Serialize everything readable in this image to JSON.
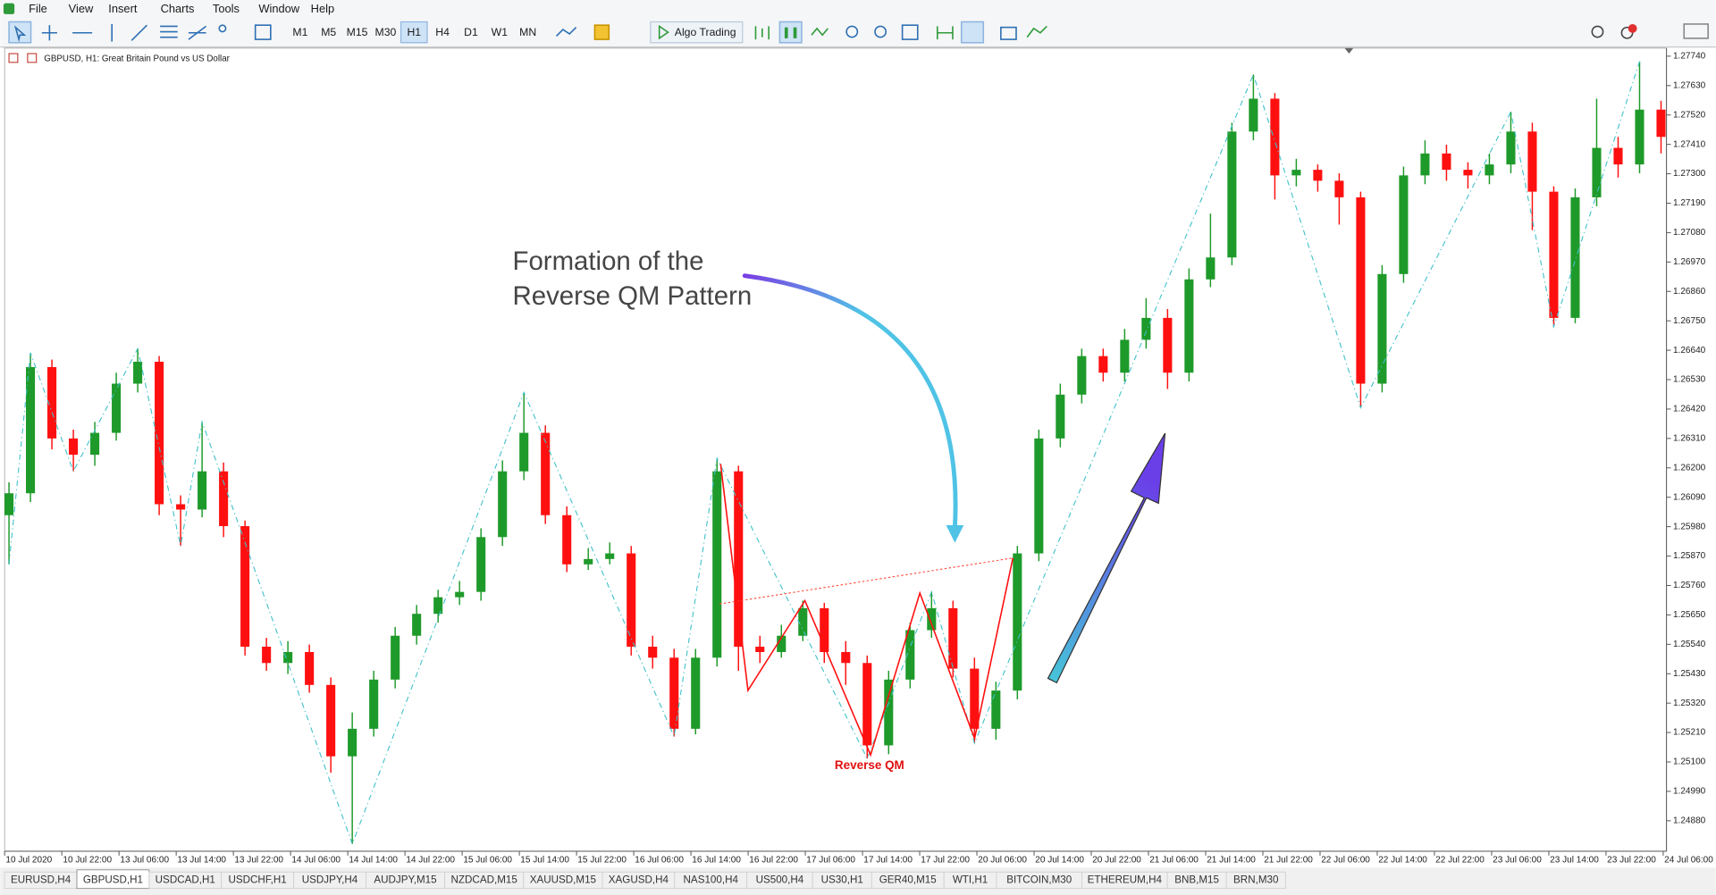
{
  "menu": [
    "File",
    "View",
    "Insert",
    "Charts",
    "Tools",
    "Window",
    "Help"
  ],
  "timeframes": [
    "M1",
    "M5",
    "M15",
    "M30",
    "H1",
    "H4",
    "D1",
    "W1",
    "MN"
  ],
  "active_timeframe": "H1",
  "algo_button": "Algo Trading",
  "chart_header": "GBPUSD, H1:  Great Britain Pound vs US Dollar",
  "chart_data": {
    "type": "candlestick",
    "annotation": [
      "Formation of the",
      "Reverse QM Pattern"
    ],
    "pattern_label": "Reverse QM",
    "up_color": "#1e9a2a",
    "down_color": "#ff1010",
    "ylim": [
      1.2477,
      1.2777
    ],
    "yticks": [
      {
        "value": 1.2774,
        "label": "1.27740"
      },
      {
        "value": 1.2763,
        "label": "1.27630"
      },
      {
        "value": 1.2752,
        "label": "1.27520"
      },
      {
        "value": 1.2741,
        "label": "1.27410"
      },
      {
        "value": 1.273,
        "label": "1.27300"
      },
      {
        "value": 1.2719,
        "label": "1.27190"
      },
      {
        "value": 1.2708,
        "label": "1.27080"
      },
      {
        "value": 1.2697,
        "label": "1.26970"
      },
      {
        "value": 1.2686,
        "label": "1.26860"
      },
      {
        "value": 1.2675,
        "label": "1.26750"
      },
      {
        "value": 1.2664,
        "label": "1.26640"
      },
      {
        "value": 1.2653,
        "label": "1.26530"
      },
      {
        "value": 1.2642,
        "label": "1.26420"
      },
      {
        "value": 1.2631,
        "label": "1.26310"
      },
      {
        "value": 1.262,
        "label": "1.26200"
      },
      {
        "value": 1.2609,
        "label": "1.26090"
      },
      {
        "value": 1.2598,
        "label": "1.25980"
      },
      {
        "value": 1.2587,
        "label": "1.25870"
      },
      {
        "value": 1.2576,
        "label": "1.25760"
      },
      {
        "value": 1.2565,
        "label": "1.25650"
      },
      {
        "value": 1.2554,
        "label": "1.25540"
      },
      {
        "value": 1.2543,
        "label": "1.25430"
      },
      {
        "value": 1.2532,
        "label": "1.25320"
      },
      {
        "value": 1.2521,
        "label": "1.25210"
      },
      {
        "value": 1.251,
        "label": "1.25100"
      },
      {
        "value": 1.2499,
        "label": "1.24990"
      },
      {
        "value": 1.2488,
        "label": "1.24880"
      }
    ],
    "x_tick_labels": [
      "10 Jul 2020",
      "10 Jul 22:00",
      "13 Jul 06:00",
      "13 Jul 14:00",
      "13 Jul 22:00",
      "14 Jul 06:00",
      "14 Jul 14:00",
      "14 Jul 22:00",
      "15 Jul 06:00",
      "15 Jul 14:00",
      "15 Jul 22:00",
      "16 Jul 06:00",
      "16 Jul 14:00",
      "16 Jul 22:00",
      "17 Jul 06:00",
      "17 Jul 14:00",
      "17 Jul 22:00",
      "20 Jul 06:00",
      "20 Jul 14:00",
      "20 Jul 22:00",
      "21 Jul 06:00",
      "21 Jul 14:00",
      "21 Jul 22:00",
      "22 Jul 06:00",
      "22 Jul 14:00",
      "22 Jul 22:00",
      "23 Jul 06:00",
      "23 Jul 14:00",
      "23 Jul 22:00",
      "24 Jul 06:00"
    ],
    "open": [
      1.26023,
      1.26105,
      1.26577,
      1.2631,
      1.26249,
      1.26331,
      1.26515,
      1.26597,
      1.26064,
      1.26044,
      1.26187,
      1.25982,
      1.25531,
      1.2547,
      1.25511,
      1.25388,
      1.25121,
      1.25224,
      1.25408,
      1.25572,
      1.25654,
      1.25716,
      1.25736,
      1.25941,
      1.26187,
      1.26331,
      1.26023,
      1.25839,
      1.25859,
      1.2588,
      1.25531,
      1.2549,
      1.25224,
      1.2549,
      1.26187,
      1.25531,
      1.25511,
      1.25572,
      1.25675,
      1.25511,
      1.2547,
      1.25162,
      1.25408,
      1.25593,
      1.25675,
      1.25449,
      1.25224,
      1.25367,
      1.2588,
      1.2631,
      1.26474,
      1.26618,
      1.26556,
      1.26679,
      1.26761,
      1.26556,
      1.26905,
      1.26987,
      1.27458,
      1.27581,
      1.27294,
      1.27315,
      1.27274,
      1.27212,
      1.26515,
      1.26925,
      1.27294,
      1.27376,
      1.27315,
      1.27294,
      1.27335,
      1.27458,
      1.27233,
      1.26761,
      1.27212,
      1.27397,
      1.27335,
      1.2754
    ],
    "high": [
      1.26146,
      1.2663,
      1.26605,
      1.26343,
      1.26372,
      1.26556,
      1.26646,
      1.26618,
      1.26097,
      1.26372,
      1.2622,
      1.26003,
      1.25564,
      1.25552,
      1.25539,
      1.25416,
      1.25285,
      1.25441,
      1.25605,
      1.25687,
      1.25744,
      1.25777,
      1.25974,
      1.26228,
      1.26482,
      1.26359,
      1.26056,
      1.259,
      1.25921,
      1.25908,
      1.25572,
      1.25523,
      1.25523,
      1.26236,
      1.26208,
      1.25572,
      1.25613,
      1.25703,
      1.25695,
      1.25552,
      1.25498,
      1.25441,
      1.25621,
      1.25736,
      1.25703,
      1.2549,
      1.254,
      1.25908,
      1.26343,
      1.26515,
      1.26646,
      1.26646,
      1.2672,
      1.26835,
      1.26794,
      1.26946,
      1.27151,
      1.27491,
      1.27671,
      1.27602,
      1.27356,
      1.27335,
      1.27302,
      1.27233,
      1.26958,
      1.27327,
      1.27425,
      1.27409,
      1.27343,
      1.27376,
      1.27532,
      1.27491,
      1.27253,
      1.27245,
      1.27581,
      1.27438,
      1.2772,
      1.27573
    ],
    "low": [
      1.25839,
      1.26072,
      1.26269,
      1.26187,
      1.26208,
      1.26302,
      1.26482,
      1.26023,
      1.25908,
      1.26015,
      1.25941,
      1.25498,
      1.25441,
      1.25429,
      1.25359,
      1.2506,
      1.24793,
      1.25195,
      1.25375,
      1.25539,
      1.25621,
      1.25687,
      1.25703,
      1.25908,
      1.26154,
      1.2599,
      1.2581,
      1.25818,
      1.25839,
      1.25498,
      1.25449,
      1.25195,
      1.25203,
      1.25457,
      1.25441,
      1.2547,
      1.2549,
      1.25552,
      1.2547,
      1.25388,
      1.25113,
      1.25129,
      1.25375,
      1.25564,
      1.25416,
      1.2517,
      1.25183,
      1.25334,
      1.25851,
      1.26277,
      1.26441,
      1.26523,
      1.26523,
      1.26646,
      1.26495,
      1.26523,
      1.26876,
      1.26958,
      1.27425,
      1.27204,
      1.27253,
      1.27233,
      1.2711,
      1.26425,
      1.26482,
      1.26892,
      1.27261,
      1.27274,
      1.27245,
      1.27261,
      1.27302,
      1.27089,
      1.26728,
      1.26741,
      1.27179,
      1.27286,
      1.27302,
      1.27376
    ],
    "close": [
      1.26105,
      1.26577,
      1.2631,
      1.26249,
      1.26331,
      1.26515,
      1.26597,
      1.26064,
      1.26044,
      1.26187,
      1.25982,
      1.25531,
      1.2547,
      1.25511,
      1.25388,
      1.25121,
      1.25224,
      1.25408,
      1.25572,
      1.25654,
      1.25716,
      1.25736,
      1.25941,
      1.26187,
      1.26331,
      1.26023,
      1.25839,
      1.25859,
      1.2588,
      1.25531,
      1.2549,
      1.25224,
      1.2549,
      1.26187,
      1.25531,
      1.25511,
      1.25572,
      1.25675,
      1.25511,
      1.2547,
      1.25162,
      1.25408,
      1.25593,
      1.25675,
      1.25449,
      1.25224,
      1.25367,
      1.2588,
      1.2631,
      1.26474,
      1.26618,
      1.26556,
      1.26679,
      1.26761,
      1.26556,
      1.26905,
      1.26987,
      1.27458,
      1.27581,
      1.27294,
      1.27315,
      1.27274,
      1.27212,
      1.26515,
      1.26925,
      1.27294,
      1.27376,
      1.27315,
      1.27294,
      1.27335,
      1.27458,
      1.27233,
      1.26761,
      1.27212,
      1.27397,
      1.27335,
      1.2754,
      1.27438
    ],
    "zigzag": {
      "color": "#3fc1c9",
      "x": [
        0,
        1,
        3,
        6,
        8,
        9,
        16,
        24,
        31,
        33,
        40,
        43,
        45,
        58,
        63,
        70,
        72,
        76
      ],
      "values": [
        1.25839,
        1.2663,
        1.26187,
        1.26646,
        1.25908,
        1.26372,
        1.24793,
        1.26482,
        1.25195,
        1.26236,
        1.25113,
        1.25736,
        1.2517,
        1.27671,
        1.26425,
        1.27532,
        1.26728,
        1.2772
      ]
    }
  },
  "tabs": [
    "EURUSD,H4",
    "GBPUSD,H1",
    "USDCAD,H1",
    "USDCHF,H1",
    "USDJPY,H4",
    "AUDJPY,M15",
    "NZDCAD,M15",
    "XAUUSD,M15",
    "XAGUSD,H4",
    "NAS100,H4",
    "US500,H4",
    "US30,H1",
    "GER40,M15",
    "WTI,H1",
    "BITCOIN,M30",
    "ETHEREUM,H4",
    "BNB,M15",
    "BRN,M30"
  ],
  "active_tab": "GBPUSD,H1"
}
